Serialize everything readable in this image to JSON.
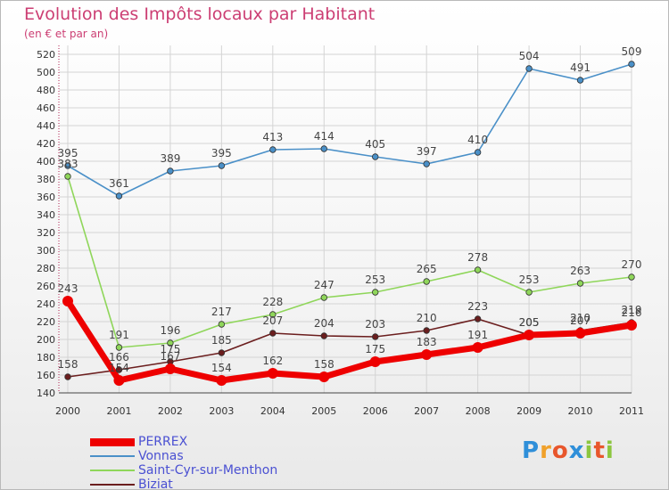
{
  "header": {
    "title": "Evolution des Impôts locaux par Habitant",
    "subtitle": "(en € et par an)"
  },
  "logo": {
    "letters": [
      "P",
      "r",
      "o",
      "x",
      "i",
      "t",
      "i"
    ],
    "colors": [
      "#2f8fd9",
      "#f0a12b",
      "#e8562c",
      "#2f8fd9",
      "#8cc63f",
      "#e8562c",
      "#8cc63f"
    ]
  },
  "chart_data": {
    "type": "line",
    "x": [
      "2000",
      "2001",
      "2002",
      "2003",
      "2004",
      "2005",
      "2006",
      "2007",
      "2008",
      "2009",
      "2010",
      "2011"
    ],
    "ylim": [
      140,
      520
    ],
    "yticks": [
      140,
      160,
      180,
      200,
      220,
      240,
      260,
      280,
      300,
      320,
      340,
      360,
      380,
      400,
      420,
      440,
      460,
      480,
      500,
      520
    ],
    "grid": true,
    "legend_position": "bottom-left",
    "series": [
      {
        "name": "PERREX",
        "color": "#ee0000",
        "values": [
          243,
          154,
          167,
          154,
          162,
          158,
          175,
          183,
          191,
          205,
          207,
          216
        ]
      },
      {
        "name": "Vonnas",
        "color": "#4a90c8",
        "values": [
          395,
          361,
          389,
          395,
          413,
          414,
          405,
          397,
          410,
          504,
          491,
          509
        ]
      },
      {
        "name": "Saint-Cyr-sur-Menthon",
        "color": "#8fd65a",
        "values": [
          383,
          191,
          196,
          217,
          228,
          247,
          253,
          265,
          278,
          253,
          263,
          270
        ]
      },
      {
        "name": "Biziat",
        "color": "#6b1e1e",
        "values": [
          158,
          166,
          175,
          185,
          207,
          204,
          203,
          210,
          223,
          205,
          210,
          219
        ]
      }
    ]
  }
}
